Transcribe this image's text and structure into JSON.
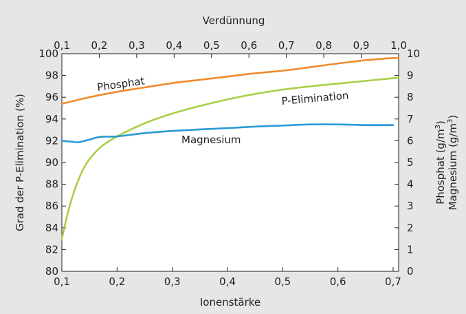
{
  "chart_data": {
    "type": "line",
    "x_axis": {
      "label": "Ionenstärke",
      "min": 0.1,
      "max": 0.71,
      "ticks": [
        0.1,
        0.2,
        0.3,
        0.4,
        0.5,
        0.6,
        0.7
      ],
      "tick_labels": [
        "0,1",
        "0,2",
        "0,3",
        "0,4",
        "0,5",
        "0,6",
        "0,7"
      ]
    },
    "x_axis_top": {
      "label": "Verdünnung",
      "min": 0.1,
      "max": 1.0,
      "ticks": [
        0.1,
        0.2,
        0.3,
        0.4,
        0.5,
        0.6,
        0.7,
        0.8,
        0.9,
        1.0
      ],
      "tick_labels": [
        "0,1",
        "0,2",
        "0,3",
        "0,4",
        "0,5",
        "0,6",
        "0,7",
        "0,8",
        "0,9",
        "1,0"
      ]
    },
    "y_axis_left": {
      "label": "Grad der P-Elimination (%)",
      "min": 80,
      "max": 100,
      "ticks": [
        80,
        82,
        84,
        86,
        88,
        90,
        92,
        94,
        96,
        98,
        100
      ],
      "tick_labels": [
        "80",
        "82",
        "84",
        "86",
        "88",
        "90",
        "92",
        "94",
        "96",
        "98",
        "100"
      ]
    },
    "y_axis_right": {
      "label_line1": "Phosphat (g/m",
      "label_line2": "Magnesium (g/m",
      "superscript": "3",
      "close": ")",
      "min": 0,
      "max": 10,
      "ticks": [
        0,
        1,
        2,
        3,
        4,
        5,
        6,
        7,
        8,
        9,
        10
      ],
      "tick_labels": [
        "0",
        "1",
        "2",
        "3",
        "4",
        "5",
        "6",
        "7",
        "8",
        "9",
        "10"
      ]
    },
    "series": [
      {
        "name": "Phosphat",
        "axis": "right",
        "color": "#f08a2c",
        "points": [
          [
            0.1,
            7.7
          ],
          [
            0.15,
            8.0
          ],
          [
            0.2,
            8.25
          ],
          [
            0.25,
            8.45
          ],
          [
            0.3,
            8.65
          ],
          [
            0.35,
            8.8
          ],
          [
            0.4,
            8.95
          ],
          [
            0.45,
            9.1
          ],
          [
            0.5,
            9.22
          ],
          [
            0.55,
            9.38
          ],
          [
            0.6,
            9.55
          ],
          [
            0.65,
            9.7
          ],
          [
            0.7,
            9.8
          ],
          [
            0.71,
            9.8
          ]
        ]
      },
      {
        "name": "P-Elimination",
        "axis": "left",
        "color": "#a8cf45",
        "points": [
          [
            0.1,
            83.0
          ],
          [
            0.11,
            85.2
          ],
          [
            0.12,
            87.0
          ],
          [
            0.13,
            88.4
          ],
          [
            0.14,
            89.5
          ],
          [
            0.15,
            90.3
          ],
          [
            0.17,
            91.4
          ],
          [
            0.2,
            92.4
          ],
          [
            0.25,
            93.6
          ],
          [
            0.3,
            94.5
          ],
          [
            0.35,
            95.2
          ],
          [
            0.4,
            95.8
          ],
          [
            0.45,
            96.3
          ],
          [
            0.5,
            96.7
          ],
          [
            0.55,
            97.0
          ],
          [
            0.6,
            97.25
          ],
          [
            0.65,
            97.5
          ],
          [
            0.7,
            97.75
          ],
          [
            0.71,
            97.8
          ]
        ]
      },
      {
        "name": "Magnesium",
        "axis": "right",
        "color": "#2a9ad4",
        "points": [
          [
            0.1,
            6.0
          ],
          [
            0.12,
            5.95
          ],
          [
            0.13,
            5.93
          ],
          [
            0.15,
            6.05
          ],
          [
            0.17,
            6.18
          ],
          [
            0.2,
            6.2
          ],
          [
            0.25,
            6.35
          ],
          [
            0.3,
            6.45
          ],
          [
            0.35,
            6.52
          ],
          [
            0.4,
            6.58
          ],
          [
            0.45,
            6.65
          ],
          [
            0.5,
            6.7
          ],
          [
            0.55,
            6.75
          ],
          [
            0.6,
            6.75
          ],
          [
            0.65,
            6.72
          ],
          [
            0.7,
            6.72
          ]
        ]
      }
    ]
  }
}
